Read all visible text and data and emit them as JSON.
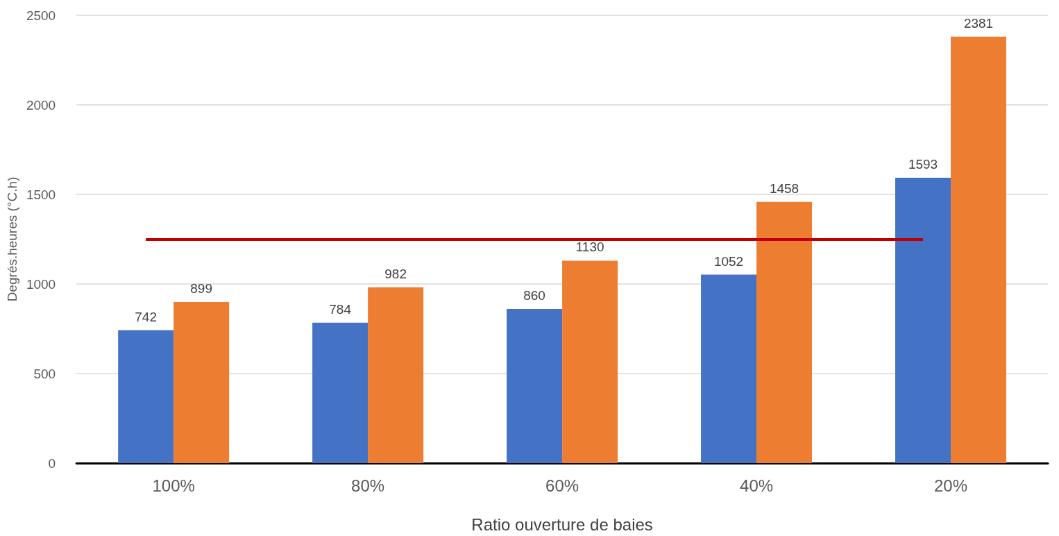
{
  "chart_data": {
    "type": "bar",
    "xlabel": "Ratio ouverture de baies",
    "ylabel": "Degrés.heures (°C.h)",
    "categories": [
      "100%",
      "80%",
      "60%",
      "40%",
      "20%"
    ],
    "series": [
      {
        "color": "#4472c4",
        "values": [
          742,
          784,
          860,
          1052,
          1593
        ]
      },
      {
        "color": "#ed7d31",
        "values": [
          899,
          982,
          1130,
          1458,
          2381
        ]
      }
    ],
    "ylim": [
      0,
      2500
    ],
    "yticks": [
      0,
      500,
      1000,
      1500,
      2000,
      2500
    ],
    "grid": "y",
    "data_labels": true,
    "ref_lines": [
      {
        "axis": "y",
        "value": 1250,
        "color": "#c00000"
      }
    ]
  }
}
